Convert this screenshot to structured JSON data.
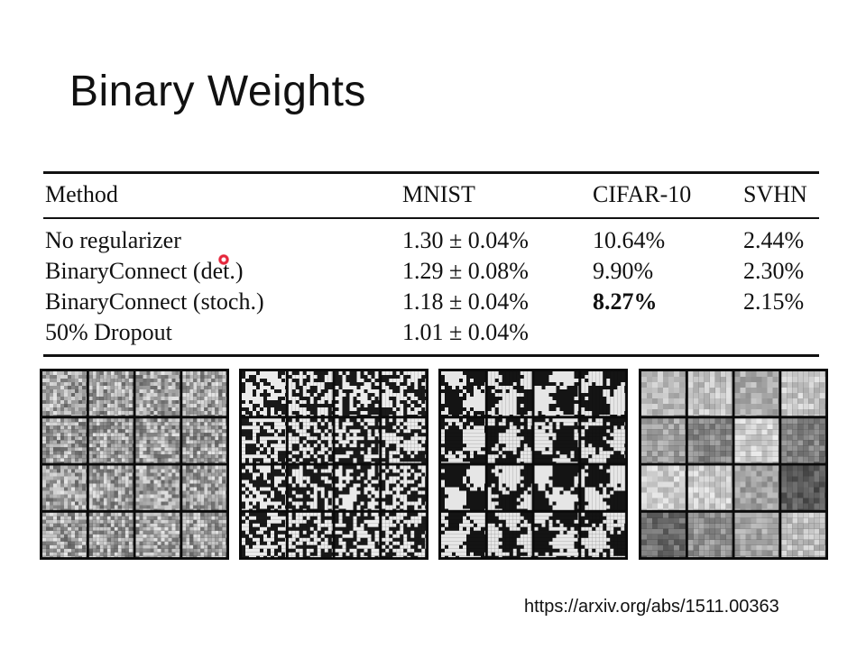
{
  "slide": {
    "title": "Binary Weights",
    "source_link": "https://arxiv.org/abs/1511.00363"
  },
  "table": {
    "headers": [
      "Method",
      "MNIST",
      "CIFAR-10",
      "SVHN"
    ],
    "rows": [
      {
        "method": "No regularizer",
        "mnist": "1.30 ± 0.04%",
        "cifar10": "10.64%",
        "svhn": "2.44%"
      },
      {
        "method": "BinaryConnect (det.)",
        "mnist": "1.29 ± 0.08%",
        "cifar10": "9.90%",
        "svhn": "2.30%"
      },
      {
        "method": "BinaryConnect (stoch.)",
        "mnist": "1.18 ± 0.04%",
        "cifar10": "8.27%",
        "svhn": "2.15%",
        "bold_cifar10": true
      },
      {
        "method": "50% Dropout",
        "mnist": "1.01 ± 0.04%",
        "cifar10": "",
        "svhn": ""
      }
    ]
  },
  "filter_panels": [
    {
      "style": "fine-gray-noise"
    },
    {
      "style": "binary-noise"
    },
    {
      "style": "binary-blobs"
    },
    {
      "style": "smooth-gray"
    }
  ],
  "pointer": {
    "color": "#e5253a"
  }
}
